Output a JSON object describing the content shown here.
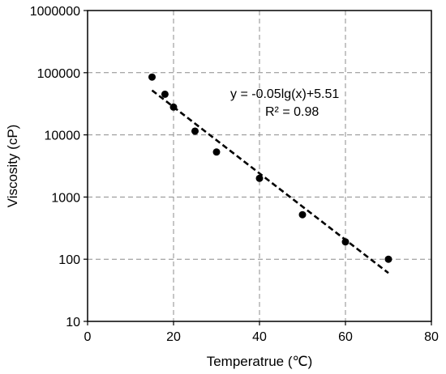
{
  "chart_data": {
    "type": "scatter",
    "xlabel": "Temperatrue (℃)",
    "ylabel": "Viscosity (cP)",
    "xlim": [
      0,
      80
    ],
    "ylim": [
      10,
      1000000
    ],
    "yscale": "log",
    "x_ticks": [
      0,
      20,
      40,
      60,
      80
    ],
    "y_ticks": [
      10,
      100,
      1000,
      10000,
      100000,
      1000000
    ],
    "x_tick_labels": [
      "0",
      "20",
      "40",
      "60",
      "80"
    ],
    "y_tick_labels": [
      "10",
      "100",
      "1000",
      "10000",
      "100000",
      "1000000"
    ],
    "grid": true,
    "grid_style": "dashed",
    "series": [
      {
        "x": [
          15,
          18,
          20,
          25,
          30,
          40,
          50,
          60,
          70
        ],
        "y": [
          85000,
          45000,
          28000,
          11500,
          5300,
          2000,
          520,
          190,
          100
        ],
        "marker": "circle",
        "color": "#000000"
      }
    ],
    "trendline": {
      "type": "log-linear fit",
      "x": [
        15,
        70
      ],
      "y": [
        52000,
        60
      ],
      "style": "dashed",
      "color": "#000000"
    },
    "annotations": {
      "equation": "y = -0.05lg(x)+5.51",
      "r2": "R² = 0.98"
    }
  }
}
